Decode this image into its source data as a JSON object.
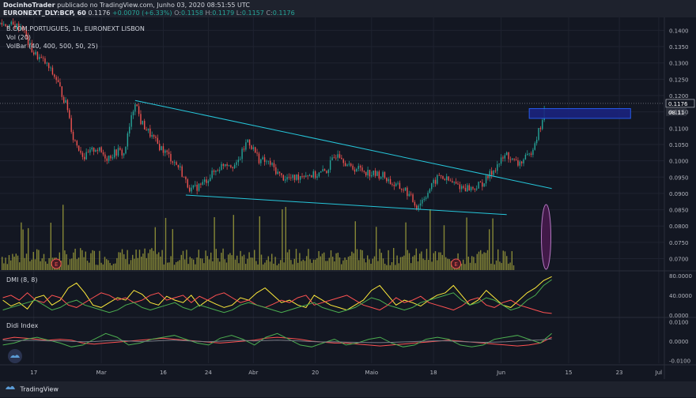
{
  "header": {
    "author": "DocinhoTrader",
    "published": "publicado no TradingView.com, Junho 03, 2020 08:51:55 UTC",
    "symbol": "EURONEXT_DLY:BCP, 60",
    "price": "0.1176",
    "change": "+0.0070 (+6.33%)",
    "ohlc": [
      {
        "k": "O:",
        "v": "0.1158"
      },
      {
        "k": "H:",
        "v": "0.1179"
      },
      {
        "k": "L:",
        "v": "0.1157"
      },
      {
        "k": "C:",
        "v": "0.1176"
      }
    ]
  },
  "legend": {
    "main": "B.COM.PORTUGUES, 1h, EURONEXT LISBON",
    "vol": "Vol (20)",
    "volbar": "VolBar (40, 400, 500, 50, 25)"
  },
  "chart_data": [
    {
      "type": "candlestick",
      "title": "B.COM.PORTUGUES, 1h, EURONEXT LISBON",
      "x_ticks": [
        "17",
        "Mar",
        "16",
        "24",
        "Abr",
        "20",
        "Maio",
        "18",
        "Jun",
        "15",
        "23",
        "Jul"
      ],
      "ylim": [
        0.0665,
        0.143
      ],
      "y_ticks": [
        "0.0700",
        "0.0750",
        "0.0800",
        "0.0850",
        "0.0900",
        "0.0950",
        "0.1000",
        "0.1050",
        "0.1100",
        "0.1150",
        "0.1200",
        "0.1250",
        "0.1300",
        "0.1350",
        "0.1400"
      ],
      "last_price": "0.1176",
      "countdown": "08:11",
      "price_path": [
        [
          0,
          0.142
        ],
        [
          4,
          0.141
        ],
        [
          5,
          0.136
        ],
        [
          6,
          0.133
        ],
        [
          8,
          0.13
        ],
        [
          10,
          0.125
        ],
        [
          12,
          0.116
        ],
        [
          13,
          0.107
        ],
        [
          15,
          0.101
        ],
        [
          17,
          0.104
        ],
        [
          19,
          0.101
        ],
        [
          21,
          0.103
        ],
        [
          22,
          0.102
        ],
        [
          24,
          0.1185
        ],
        [
          25,
          0.112
        ],
        [
          28,
          0.105
        ],
        [
          30,
          0.1015
        ],
        [
          32,
          0.0975
        ],
        [
          33,
          0.0935
        ],
        [
          34,
          0.091
        ],
        [
          36,
          0.093
        ],
        [
          38,
          0.0965
        ],
        [
          40,
          0.0995
        ],
        [
          42,
          0.0985
        ],
        [
          44,
          0.1065
        ],
        [
          46,
          0.1005
        ],
        [
          48,
          0.099
        ],
        [
          50,
          0.095
        ],
        [
          52,
          0.0945
        ],
        [
          54,
          0.096
        ],
        [
          56,
          0.0955
        ],
        [
          58,
          0.097
        ],
        [
          60,
          0.103
        ],
        [
          62,
          0.098
        ],
        [
          64,
          0.0975
        ],
        [
          66,
          0.096
        ],
        [
          68,
          0.0955
        ],
        [
          70,
          0.0925
        ],
        [
          72,
          0.091
        ],
        [
          74,
          0.086
        ],
        [
          75,
          0.088
        ],
        [
          76,
          0.0905
        ],
        [
          78,
          0.0955
        ],
        [
          80,
          0.0935
        ],
        [
          82,
          0.092
        ],
        [
          84,
          0.0915
        ],
        [
          86,
          0.0935
        ],
        [
          88,
          0.098
        ],
        [
          90,
          0.102
        ],
        [
          91,
          0.1
        ],
        [
          92,
          0.099
        ],
        [
          94,
          0.1015
        ],
        [
          95,
          0.106
        ],
        [
          96,
          0.1105
        ],
        [
          97,
          0.1176
        ]
      ],
      "trendlines": [
        {
          "color": "#26c6da",
          "from": [
            24,
            0.1185
          ],
          "to": [
            98,
            0.0915
          ]
        },
        {
          "color": "#26c6da",
          "from": [
            33,
            0.0895
          ],
          "to": [
            90,
            0.0835
          ]
        }
      ],
      "zone": {
        "color": "#2962ff",
        "from": [
          94,
          0.116
        ],
        "to": [
          112,
          0.113
        ]
      },
      "event_markers": [
        {
          "label": "E",
          "x": 10
        },
        {
          "label": "E",
          "x": 81
        }
      ]
    },
    {
      "type": "line",
      "title": "DMI (8, 8)",
      "ylim": [
        -2,
        85
      ],
      "y_ticks": [
        "80.0000",
        "40.0000",
        "0.0000"
      ],
      "series": [
        {
          "color": "#ffeb3b",
          "values": [
            30,
            18,
            25,
            12,
            35,
            40,
            20,
            30,
            55,
            65,
            45,
            20,
            15,
            25,
            35,
            30,
            50,
            42,
            25,
            20,
            38,
            30,
            25,
            40,
            18,
            30,
            22,
            15,
            20,
            35,
            30,
            45,
            55,
            40,
            25,
            30,
            20,
            15,
            40,
            30,
            20,
            15,
            10,
            20,
            30,
            50,
            60,
            40,
            20,
            30,
            25,
            18,
            30,
            40,
            45,
            60,
            40,
            20,
            30,
            50,
            35,
            20,
            15,
            30,
            45,
            55,
            70,
            78
          ]
        },
        {
          "color": "#ff5252",
          "values": [
            35,
            40,
            30,
            45,
            30,
            25,
            40,
            35,
            20,
            15,
            25,
            35,
            45,
            40,
            30,
            35,
            25,
            30,
            40,
            45,
            30,
            35,
            40,
            25,
            38,
            30,
            40,
            45,
            35,
            25,
            30,
            20,
            15,
            22,
            30,
            25,
            35,
            40,
            20,
            25,
            30,
            35,
            40,
            30,
            20,
            15,
            10,
            20,
            35,
            25,
            30,
            38,
            25,
            20,
            15,
            10,
            18,
            30,
            35,
            20,
            15,
            25,
            30,
            20,
            15,
            10,
            5,
            3
          ]
        },
        {
          "color": "#4caf50",
          "values": [
            10,
            15,
            20,
            25,
            30,
            20,
            10,
            15,
            25,
            30,
            20,
            15,
            10,
            5,
            10,
            20,
            25,
            15,
            10,
            15,
            20,
            25,
            15,
            10,
            20,
            15,
            10,
            5,
            10,
            20,
            25,
            20,
            15,
            10,
            5,
            10,
            15,
            20,
            25,
            15,
            10,
            5,
            10,
            15,
            25,
            35,
            30,
            20,
            15,
            10,
            15,
            25,
            30,
            35,
            40,
            45,
            30,
            20,
            25,
            35,
            30,
            20,
            10,
            15,
            30,
            40,
            60,
            72
          ]
        }
      ]
    },
    {
      "type": "line",
      "title": "Didi Index",
      "ylim": [
        -0.0115,
        0.0115
      ],
      "y_ticks": [
        "0.0100",
        "0.0000",
        "-0.0100"
      ],
      "series": [
        {
          "color": "#ff5252",
          "values": [
            0.001,
            0.002,
            0.0015,
            0.001,
            0.0005,
            0.001,
            0.0005,
            -0.001,
            -0.0015,
            -0.001,
            -0.0005,
            0,
            0.0005,
            0.001,
            0.0015,
            0.001,
            0.0005,
            0,
            -0.0005,
            -0.001,
            -0.0005,
            0,
            0.0005,
            0.0015,
            0.002,
            0.0015,
            0.001,
            0,
            -0.0005,
            -0.001,
            -0.001,
            -0.0015,
            -0.002,
            -0.0025,
            -0.002,
            -0.0015,
            -0.001,
            -0.0005,
            0,
            0.0005,
            0,
            -0.0005,
            -0.001,
            -0.0015,
            -0.002,
            -0.0025,
            -0.002,
            -0.001,
            0.002
          ]
        },
        {
          "color": "#4caf50",
          "values": [
            -0.002,
            -0.001,
            0.001,
            0.002,
            0.0005,
            -0.001,
            -0.003,
            -0.002,
            0.001,
            0.004,
            0.002,
            -0.002,
            -0.001,
            0.001,
            0.002,
            0.003,
            0.001,
            -0.001,
            -0.002,
            0.0015,
            0.003,
            0.001,
            -0.002,
            0.002,
            0.004,
            0.001,
            -0.002,
            -0.003,
            -0.001,
            0.001,
            -0.002,
            -0.001,
            0.001,
            0.002,
            -0.001,
            -0.003,
            -0.002,
            0.001,
            0.002,
            0.001,
            -0.002,
            -0.003,
            -0.002,
            0.001,
            0.002,
            0.003,
            0.001,
            -0.001,
            0.004
          ]
        },
        {
          "color": "#787b86",
          "values": [
            0.0005,
            0.0002,
            0.0004,
            0.0003,
            0.0001,
            0.0002,
            -0.0001,
            -0.0003,
            -0.0002,
            0.0002,
            0.0004,
            0.0001,
            -0.0002,
            0,
            0.0003,
            0.0005,
            0.0002,
            -0.0001,
            -0.0003,
            0,
            0.0003,
            0.0004,
            0.0001,
            0.0003,
            0.0005,
            0.0003,
            0.0001,
            -0.0002,
            -0.0004,
            -0.0003,
            -0.0005,
            -0.0006,
            -0.0007,
            -0.0008,
            -0.0006,
            -0.0004,
            -0.0002,
            0,
            0.0002,
            0.0001,
            -0.0002,
            -0.0004,
            -0.0006,
            -0.0005,
            -0.0003,
            0.0001,
            0.0004,
            0.0006,
            0.0012
          ]
        }
      ]
    }
  ],
  "footer": {
    "brand": "TradingView"
  },
  "colors": {
    "bg": "#131722",
    "grid": "#1f2330",
    "axis_text": "#b2b5be",
    "up": "#26a69a",
    "down": "#ef5350",
    "volume": "#9a9a3a"
  }
}
